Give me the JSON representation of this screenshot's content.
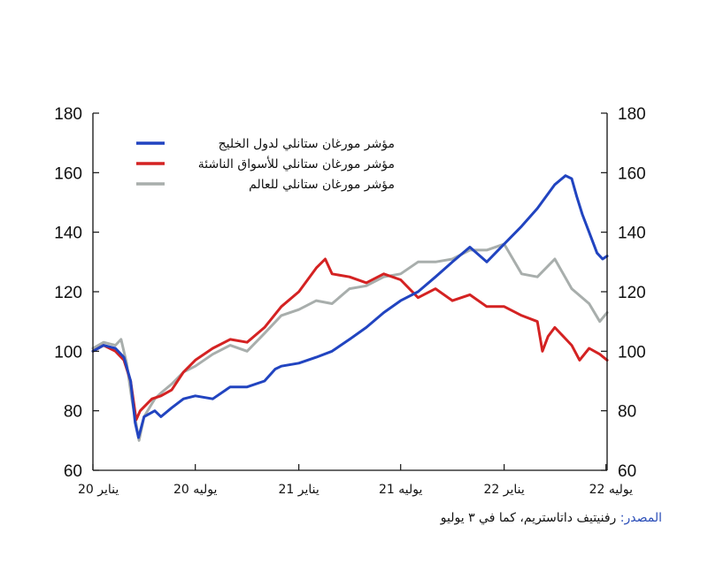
{
  "chart_data": {
    "type": "line",
    "title": "",
    "xlabel": "",
    "ylabel": "",
    "ylim": [
      60,
      180
    ],
    "yticks": [
      60,
      80,
      100,
      120,
      140,
      160,
      180
    ],
    "ytick_labels": [
      "60",
      "80",
      "100",
      "120",
      "140",
      "160",
      "180"
    ],
    "xlim": [
      "2020-01-01",
      "2022-07-03"
    ],
    "xticks": [
      {
        "date": "2020-01-01",
        "label": "يناير 20"
      },
      {
        "date": "2020-07-01",
        "label": "يوليه 20"
      },
      {
        "date": "2021-01-01",
        "label": "يناير 21"
      },
      {
        "date": "2021-07-01",
        "label": "يوليه 21"
      },
      {
        "date": "2022-01-01",
        "label": "يناير 22"
      },
      {
        "date": "2022-07-01",
        "label": "يوليه 22"
      }
    ],
    "grid": false,
    "legend_position": "top-left",
    "series": [
      {
        "name": "مؤشر مورغان ستانلي لدول الخليج",
        "color": "#2144c0",
        "points": [
          [
            "2020-01-01",
            100
          ],
          [
            "2020-01-20",
            102
          ],
          [
            "2020-02-10",
            101
          ],
          [
            "2020-02-25",
            98
          ],
          [
            "2020-03-08",
            90
          ],
          [
            "2020-03-16",
            76
          ],
          [
            "2020-03-22",
            71
          ],
          [
            "2020-04-01",
            78
          ],
          [
            "2020-04-20",
            80
          ],
          [
            "2020-05-01",
            78
          ],
          [
            "2020-05-20",
            81
          ],
          [
            "2020-06-10",
            84
          ],
          [
            "2020-07-01",
            85
          ],
          [
            "2020-08-01",
            84
          ],
          [
            "2020-09-01",
            88
          ],
          [
            "2020-10-01",
            88
          ],
          [
            "2020-11-01",
            90
          ],
          [
            "2020-11-20",
            94
          ],
          [
            "2020-12-01",
            95
          ],
          [
            "2021-01-01",
            96
          ],
          [
            "2021-02-01",
            98
          ],
          [
            "2021-03-01",
            100
          ],
          [
            "2021-04-01",
            104
          ],
          [
            "2021-05-01",
            108
          ],
          [
            "2021-06-01",
            113
          ],
          [
            "2021-07-01",
            117
          ],
          [
            "2021-08-01",
            120
          ],
          [
            "2021-09-01",
            125
          ],
          [
            "2021-10-01",
            130
          ],
          [
            "2021-11-01",
            135
          ],
          [
            "2021-12-01",
            130
          ],
          [
            "2022-01-01",
            136
          ],
          [
            "2022-02-01",
            142
          ],
          [
            "2022-03-01",
            148
          ],
          [
            "2022-04-01",
            156
          ],
          [
            "2022-04-20",
            159
          ],
          [
            "2022-05-01",
            158
          ],
          [
            "2022-05-10",
            152
          ],
          [
            "2022-05-20",
            146
          ],
          [
            "2022-06-01",
            140
          ],
          [
            "2022-06-15",
            133
          ],
          [
            "2022-06-25",
            131
          ],
          [
            "2022-07-03",
            132
          ]
        ]
      },
      {
        "name": "مؤشر مورغان ستانلي للأسواق الناشئة",
        "color": "#d42222",
        "points": [
          [
            "2020-01-01",
            100
          ],
          [
            "2020-01-20",
            102
          ],
          [
            "2020-02-10",
            100
          ],
          [
            "2020-02-25",
            97
          ],
          [
            "2020-03-08",
            90
          ],
          [
            "2020-03-18",
            77
          ],
          [
            "2020-03-25",
            80
          ],
          [
            "2020-04-15",
            84
          ],
          [
            "2020-05-01",
            85
          ],
          [
            "2020-05-20",
            87
          ],
          [
            "2020-06-10",
            93
          ],
          [
            "2020-07-01",
            97
          ],
          [
            "2020-08-01",
            101
          ],
          [
            "2020-09-01",
            104
          ],
          [
            "2020-10-01",
            103
          ],
          [
            "2020-11-01",
            108
          ],
          [
            "2020-12-01",
            115
          ],
          [
            "2021-01-01",
            120
          ],
          [
            "2021-02-01",
            128
          ],
          [
            "2021-02-17",
            131
          ],
          [
            "2021-03-01",
            126
          ],
          [
            "2021-04-01",
            125
          ],
          [
            "2021-05-01",
            123
          ],
          [
            "2021-06-01",
            126
          ],
          [
            "2021-07-01",
            124
          ],
          [
            "2021-08-01",
            118
          ],
          [
            "2021-09-01",
            121
          ],
          [
            "2021-10-01",
            117
          ],
          [
            "2021-11-01",
            119
          ],
          [
            "2021-12-01",
            115
          ],
          [
            "2022-01-01",
            115
          ],
          [
            "2022-02-01",
            112
          ],
          [
            "2022-03-01",
            110
          ],
          [
            "2022-03-10",
            100
          ],
          [
            "2022-03-20",
            105
          ],
          [
            "2022-04-01",
            108
          ],
          [
            "2022-05-01",
            102
          ],
          [
            "2022-05-15",
            97
          ],
          [
            "2022-06-01",
            101
          ],
          [
            "2022-06-20",
            99
          ],
          [
            "2022-07-03",
            97
          ]
        ]
      },
      {
        "name": "مؤشر مورغان ستانلي للعالم",
        "color": "#a8aeac",
        "points": [
          [
            "2020-01-01",
            101
          ],
          [
            "2020-01-20",
            103
          ],
          [
            "2020-02-10",
            102
          ],
          [
            "2020-02-20",
            104
          ],
          [
            "2020-03-01",
            96
          ],
          [
            "2020-03-10",
            84
          ],
          [
            "2020-03-23",
            70
          ],
          [
            "2020-04-01",
            78
          ],
          [
            "2020-04-20",
            84
          ],
          [
            "2020-05-01",
            86
          ],
          [
            "2020-05-20",
            89
          ],
          [
            "2020-06-10",
            93
          ],
          [
            "2020-07-01",
            95
          ],
          [
            "2020-08-01",
            99
          ],
          [
            "2020-09-01",
            102
          ],
          [
            "2020-10-01",
            100
          ],
          [
            "2020-11-01",
            106
          ],
          [
            "2020-12-01",
            112
          ],
          [
            "2021-01-01",
            114
          ],
          [
            "2021-02-01",
            117
          ],
          [
            "2021-03-01",
            116
          ],
          [
            "2021-04-01",
            121
          ],
          [
            "2021-05-01",
            122
          ],
          [
            "2021-06-01",
            125
          ],
          [
            "2021-07-01",
            126
          ],
          [
            "2021-08-01",
            130
          ],
          [
            "2021-09-01",
            130
          ],
          [
            "2021-10-01",
            131
          ],
          [
            "2021-11-01",
            134
          ],
          [
            "2021-12-01",
            134
          ],
          [
            "2022-01-01",
            136
          ],
          [
            "2022-02-01",
            126
          ],
          [
            "2022-03-01",
            125
          ],
          [
            "2022-04-01",
            131
          ],
          [
            "2022-05-01",
            121
          ],
          [
            "2022-06-01",
            116
          ],
          [
            "2022-06-20",
            110
          ],
          [
            "2022-07-03",
            113
          ]
        ]
      }
    ]
  },
  "source": {
    "label": "المصدر:",
    "text": "رفنيتيف داتاستريم، كما في ٣ يوليو"
  }
}
